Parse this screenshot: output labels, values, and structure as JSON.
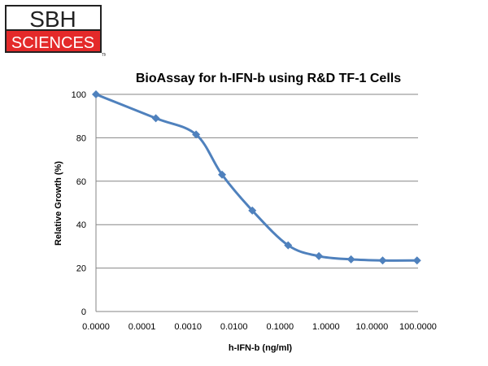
{
  "logo": {
    "top_text": "SBH",
    "bottom_text": "SCIENCES",
    "tm": "TM",
    "colors": {
      "red": "#e42a2a",
      "dark": "#222222"
    }
  },
  "chart_data": {
    "type": "line",
    "title": "BioAssay for h-IFN-b using R&D TF-1 Cells",
    "xlabel": "h-IFN-b (ng/ml)",
    "ylabel": "Relative Growth (%)",
    "x_scale": "log-category",
    "x_ticks": [
      "0.0000",
      "0.0001",
      "0.0010",
      "0.0100",
      "0.1000",
      "1.0000",
      "10.0000",
      "100.0000"
    ],
    "ylim": [
      0,
      100
    ],
    "y_ticks": [
      0,
      20,
      40,
      60,
      80,
      100
    ],
    "grid": "horizontal",
    "legend": "none",
    "series": [
      {
        "color": "#4f81bd",
        "x": [
          0.0,
          0.0002,
          0.0015,
          0.0055,
          0.025,
          0.15,
          0.7,
          3.5,
          17,
          95
        ],
        "y": [
          100,
          89,
          81.5,
          63,
          46.5,
          30.5,
          25.5,
          24,
          23.5,
          23.5
        ]
      }
    ]
  }
}
